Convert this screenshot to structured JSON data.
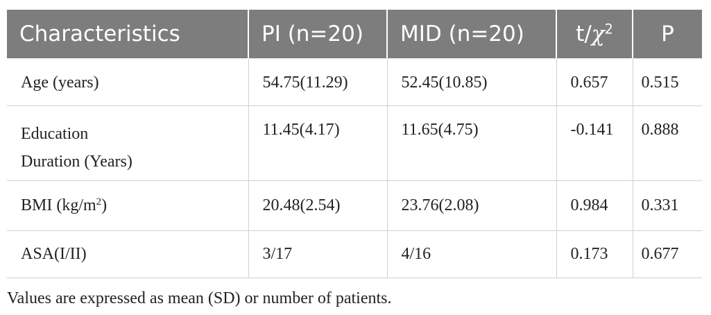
{
  "table": {
    "headers": {
      "characteristics": "Characteristics",
      "pi": "PI (n=20)",
      "mid": "MID (n=20)",
      "stat_prefix": "t/",
      "stat_chi": "χ",
      "stat_sup": "2",
      "p": "P"
    },
    "rows": [
      {
        "label": "Age (years)",
        "pi": "54.75(11.29)",
        "mid": "52.45(10.85)",
        "stat": "0.657",
        "p": "0.515"
      },
      {
        "label_line1": "Education",
        "label_line2": "Duration (Years)",
        "pi": "11.45(4.17)",
        "mid": "11.65(4.75)",
        "stat": "-0.141",
        "p": "0.888"
      },
      {
        "label_main": "BMI (kg/m",
        "label_sup": "2",
        "label_end": ")",
        "pi": "20.48(2.54)",
        "mid": "23.76(2.08)",
        "stat": "0.984",
        "p": "0.331"
      },
      {
        "label": "ASA(I/II)",
        "pi": "3/17",
        "mid": "4/16",
        "stat": "0.173",
        "p": "0.677"
      }
    ]
  },
  "footnote": "Values are expressed as mean (SD) or number of patients."
}
